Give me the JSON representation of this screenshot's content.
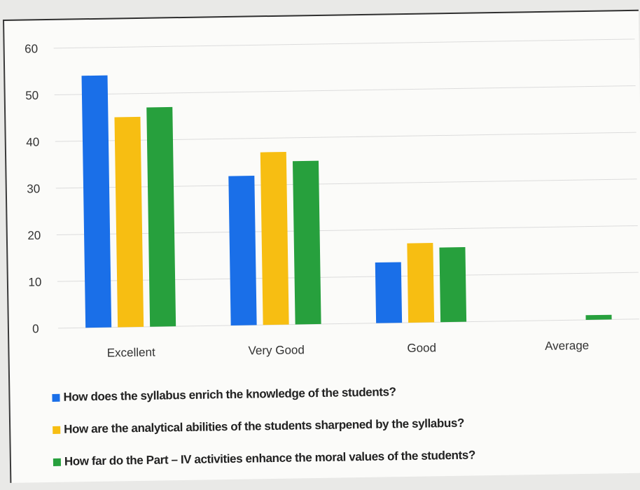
{
  "colors": {
    "series1": "#1a6fe8",
    "series2": "#f7be12",
    "series3": "#27a03d"
  },
  "chart_data": {
    "type": "bar",
    "categories": [
      "Excellent",
      "Very Good",
      "Good",
      "Average"
    ],
    "series": [
      {
        "name": "How does the syllabus enrich the knowledge of the students?",
        "values": [
          54,
          32,
          13,
          0
        ]
      },
      {
        "name": "How are the analytical abilities of the students sharpened by the syllabus?",
        "values": [
          45,
          37,
          17,
          0
        ]
      },
      {
        "name": "How far do the Part – IV activities enhance the moral values of the students?",
        "values": [
          47,
          35,
          16,
          1
        ]
      }
    ],
    "ylim": [
      0,
      60
    ],
    "yticks": [
      "0",
      "10",
      "20",
      "30",
      "40",
      "50",
      "60"
    ],
    "grid": true,
    "legend_position": "bottom"
  }
}
